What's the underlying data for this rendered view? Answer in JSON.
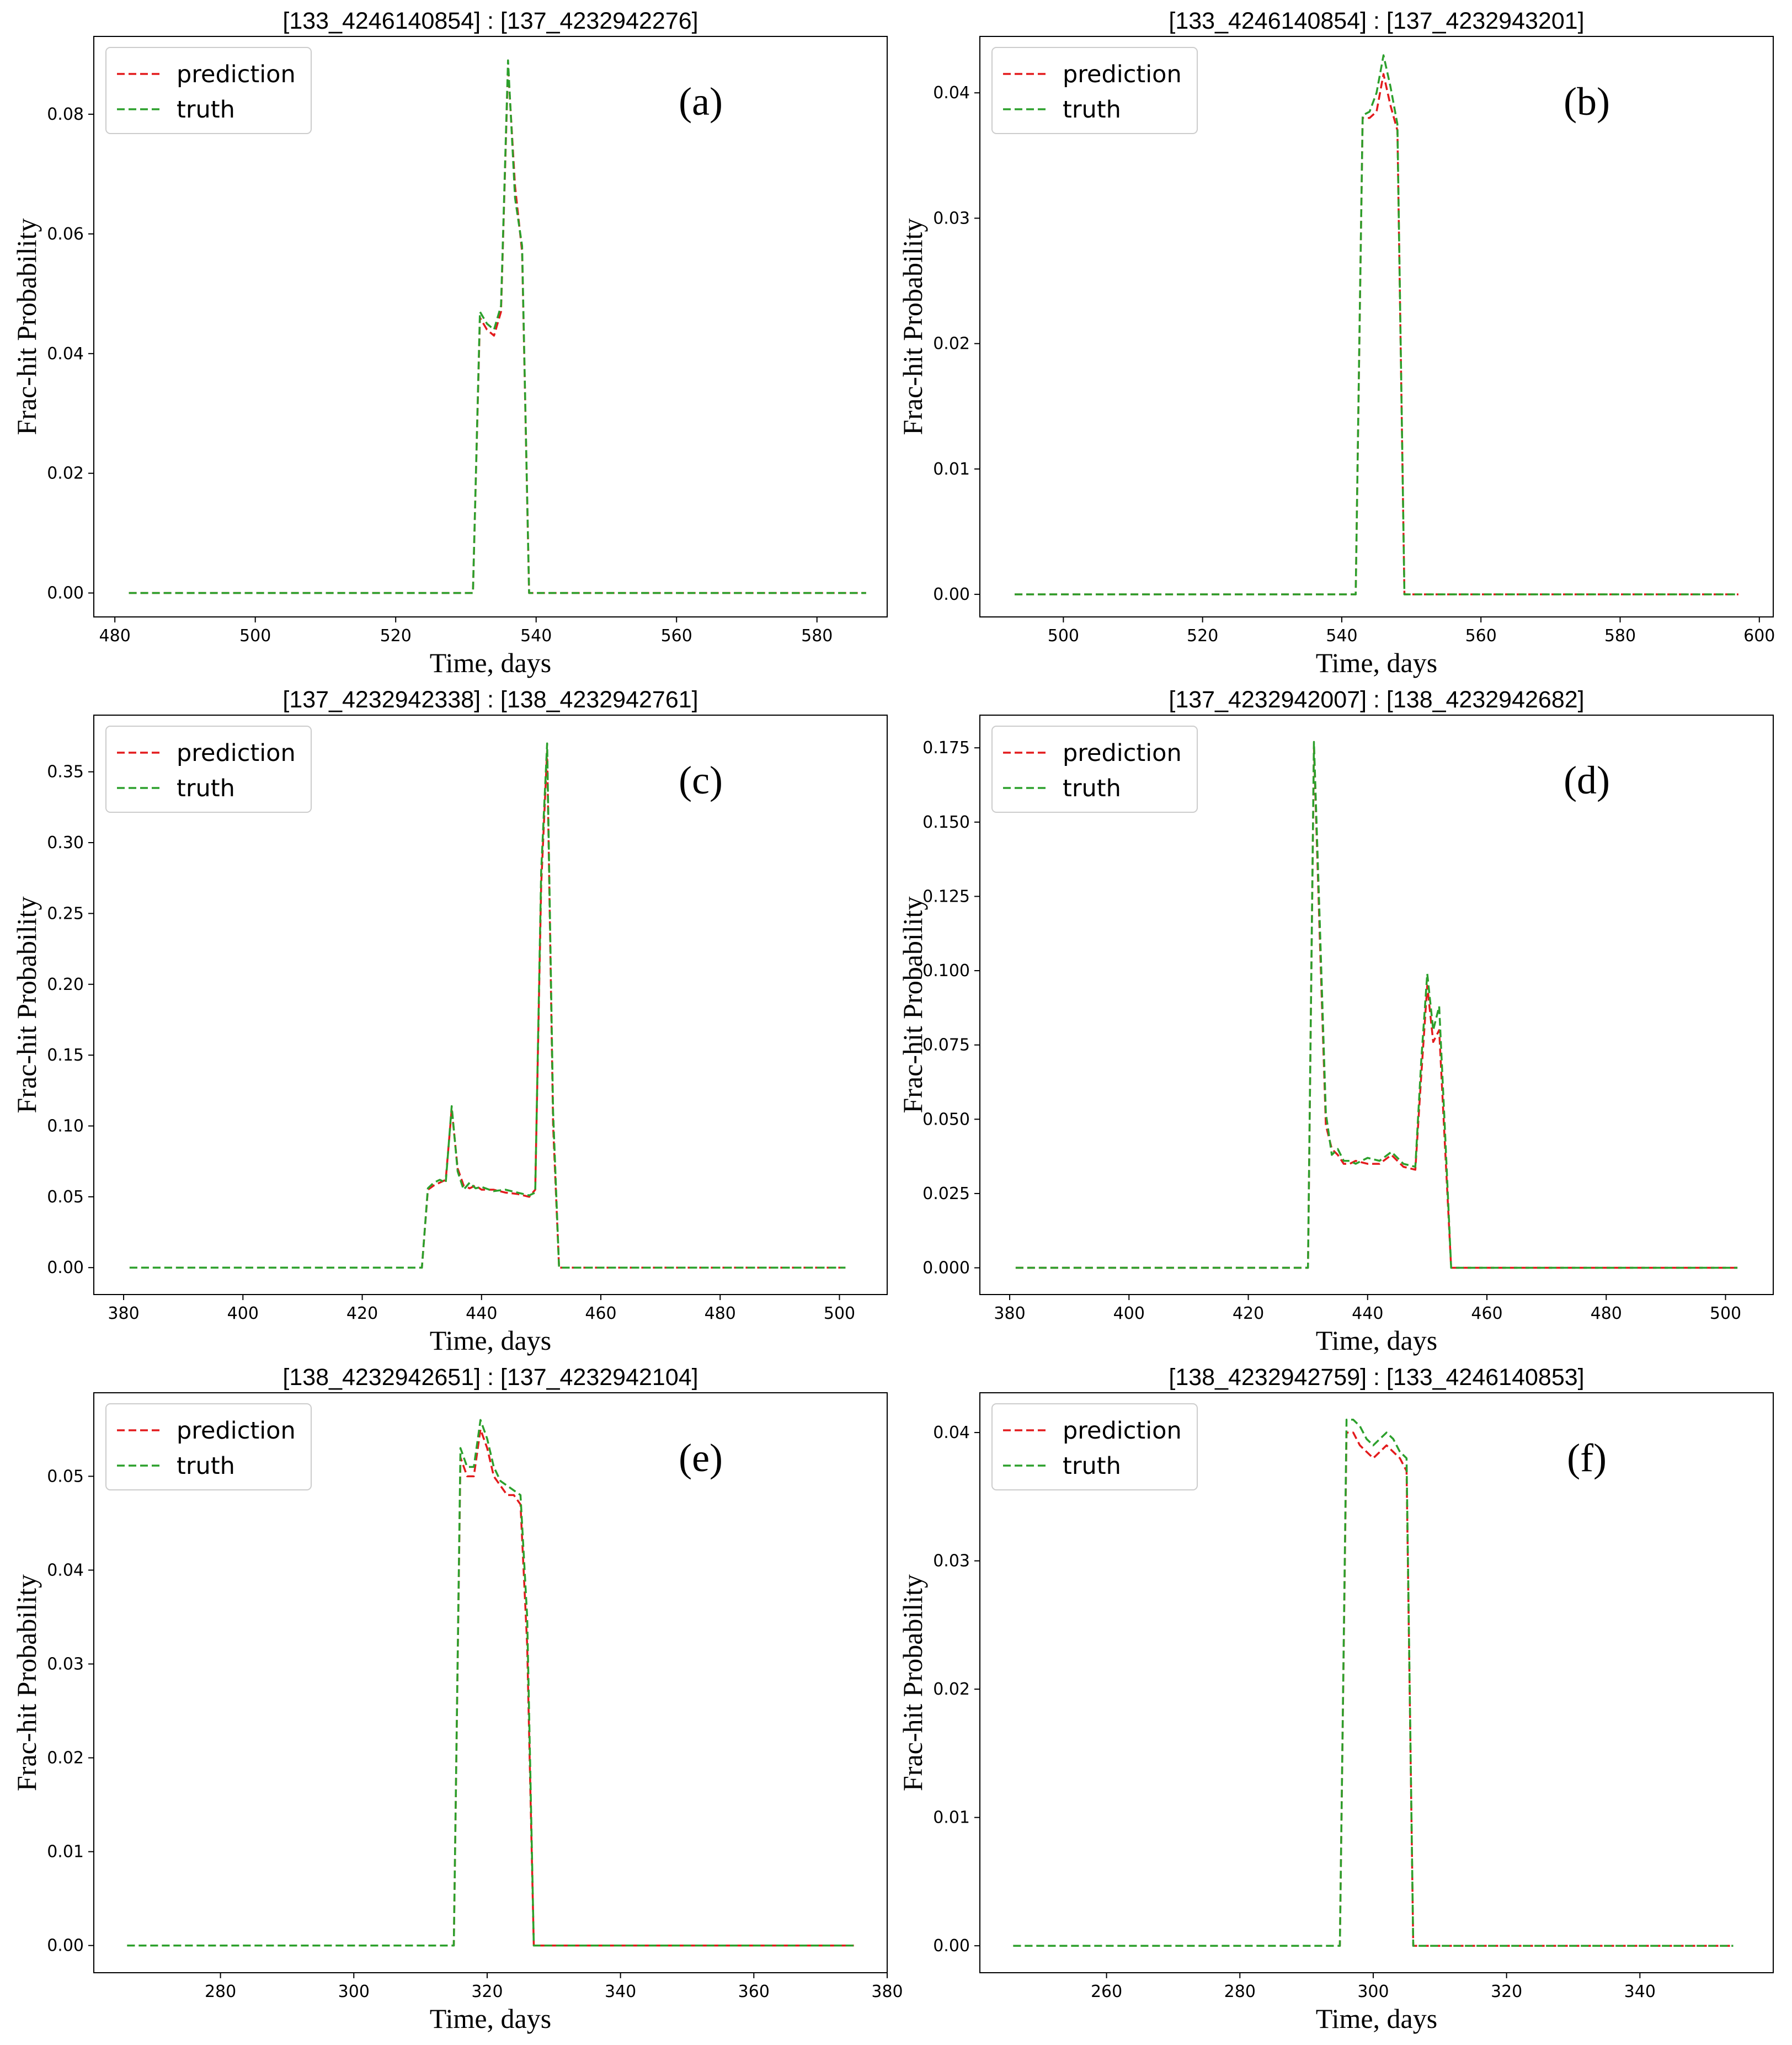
{
  "colors": {
    "prediction": "#e31a1c",
    "truth": "#2ca02c",
    "frame": "#000000",
    "background": "#ffffff"
  },
  "chart_data": [
    {
      "type": "line",
      "title": "[133_4246140854] : [137_4232942276]",
      "panel_label": "(a)",
      "xlabel": "Time, days",
      "ylabel": "Frac-hit Probability",
      "xlim": [
        477,
        590
      ],
      "ylim": [
        -0.004,
        0.093
      ],
      "xticks": [
        480,
        500,
        520,
        540,
        560,
        580
      ],
      "yticks": [
        0,
        0.02,
        0.04,
        0.06,
        0.08
      ],
      "ytick_labels": [
        "0.00",
        "0.02",
        "0.04",
        "0.06",
        "0.08"
      ],
      "legend": [
        "prediction",
        "truth"
      ],
      "legend_position": "top-left",
      "grid": false,
      "series": [
        {
          "name": "prediction",
          "x": [
            482,
            531,
            532,
            533,
            534,
            535,
            536,
            537,
            538,
            539,
            540,
            587
          ],
          "y": [
            0,
            0,
            0.046,
            0.044,
            0.043,
            0.047,
            0.088,
            0.068,
            0.057,
            0,
            0,
            0
          ]
        },
        {
          "name": "truth",
          "x": [
            482,
            531,
            532,
            533,
            534,
            535,
            536,
            537,
            538,
            539,
            540,
            587
          ],
          "y": [
            0,
            0,
            0.047,
            0.045,
            0.044,
            0.048,
            0.089,
            0.066,
            0.058,
            0,
            0,
            0
          ]
        }
      ]
    },
    {
      "type": "line",
      "title": "[133_4246140854] : [137_4232943201]",
      "panel_label": "(b)",
      "xlabel": "Time, days",
      "ylabel": "Frac-hit Probability",
      "xlim": [
        488,
        602
      ],
      "ylim": [
        -0.0018,
        0.0445
      ],
      "xticks": [
        500,
        520,
        540,
        560,
        580,
        600
      ],
      "yticks": [
        0,
        0.01,
        0.02,
        0.03,
        0.04
      ],
      "ytick_labels": [
        "0.00",
        "0.01",
        "0.02",
        "0.03",
        "0.04"
      ],
      "legend": [
        "prediction",
        "truth"
      ],
      "legend_position": "top-left",
      "grid": false,
      "series": [
        {
          "name": "prediction",
          "x": [
            493,
            542,
            543,
            544,
            545,
            546,
            547,
            548,
            549,
            550,
            597
          ],
          "y": [
            0,
            0,
            0.038,
            0.038,
            0.0385,
            0.0415,
            0.039,
            0.037,
            0,
            0,
            0
          ]
        },
        {
          "name": "truth",
          "x": [
            493,
            542,
            543,
            544,
            545,
            546,
            547,
            548,
            549,
            550,
            597
          ],
          "y": [
            0,
            0,
            0.0382,
            0.0385,
            0.04,
            0.043,
            0.0405,
            0.0375,
            0,
            0,
            0
          ]
        }
      ]
    },
    {
      "type": "line",
      "title": "[137_4232942338] : [138_4232942761]",
      "panel_label": "(c)",
      "xlabel": "Time, days",
      "ylabel": "Frac-hit Probability",
      "xlim": [
        375,
        508
      ],
      "ylim": [
        -0.019,
        0.39
      ],
      "xticks": [
        380,
        400,
        420,
        440,
        460,
        480,
        500
      ],
      "yticks": [
        0,
        0.05,
        0.1,
        0.15,
        0.2,
        0.25,
        0.3,
        0.35
      ],
      "ytick_labels": [
        "0.00",
        "0.05",
        "0.10",
        "0.15",
        "0.20",
        "0.25",
        "0.30",
        "0.35"
      ],
      "legend": [
        "prediction",
        "truth"
      ],
      "legend_position": "top-left",
      "grid": false,
      "series": [
        {
          "name": "prediction",
          "x": [
            381,
            430,
            431,
            432,
            433,
            434,
            435,
            436,
            437,
            438,
            439,
            440,
            442,
            444,
            446,
            448,
            449,
            450,
            451,
            452,
            453,
            501
          ],
          "y": [
            0,
            0,
            0.055,
            0.058,
            0.06,
            0.062,
            0.112,
            0.07,
            0.058,
            0.056,
            0.058,
            0.055,
            0.055,
            0.053,
            0.052,
            0.05,
            0.055,
            0.27,
            0.365,
            0.1,
            0,
            0
          ]
        },
        {
          "name": "truth",
          "x": [
            381,
            430,
            431,
            432,
            433,
            434,
            435,
            436,
            437,
            438,
            439,
            440,
            442,
            444,
            446,
            448,
            449,
            450,
            451,
            452,
            453,
            501
          ],
          "y": [
            0,
            0,
            0.056,
            0.06,
            0.062,
            0.06,
            0.114,
            0.068,
            0.055,
            0.06,
            0.056,
            0.057,
            0.054,
            0.055,
            0.053,
            0.051,
            0.053,
            0.28,
            0.37,
            0.11,
            0,
            0
          ]
        }
      ]
    },
    {
      "type": "line",
      "title": "[137_4232942007] : [138_4232942682]",
      "panel_label": "(d)",
      "xlabel": "Time, days",
      "ylabel": "Frac-hit Probability",
      "xlim": [
        375,
        508
      ],
      "ylim": [
        -0.009,
        0.186
      ],
      "xticks": [
        380,
        400,
        420,
        440,
        460,
        480,
        500
      ],
      "yticks": [
        0,
        0.025,
        0.05,
        0.075,
        0.1,
        0.125,
        0.15,
        0.175
      ],
      "ytick_labels": [
        "0.000",
        "0.025",
        "0.050",
        "0.075",
        "0.100",
        "0.125",
        "0.150",
        "0.175"
      ],
      "legend": [
        "prediction",
        "truth"
      ],
      "legend_position": "top-left",
      "grid": false,
      "series": [
        {
          "name": "prediction",
          "x": [
            381,
            430,
            431,
            432,
            433,
            434,
            435,
            436,
            437,
            438,
            440,
            442,
            444,
            446,
            448,
            449,
            450,
            451,
            452,
            453,
            454,
            502
          ],
          "y": [
            0,
            0,
            0.175,
            0.11,
            0.048,
            0.04,
            0.038,
            0.035,
            0.035,
            0.036,
            0.035,
            0.035,
            0.038,
            0.034,
            0.033,
            0.065,
            0.095,
            0.076,
            0.08,
            0.04,
            0,
            0
          ]
        },
        {
          "name": "truth",
          "x": [
            381,
            430,
            431,
            432,
            433,
            434,
            435,
            436,
            437,
            438,
            440,
            442,
            444,
            446,
            448,
            449,
            450,
            451,
            452,
            453,
            454,
            502
          ],
          "y": [
            0,
            0,
            0.177,
            0.115,
            0.052,
            0.038,
            0.04,
            0.036,
            0.036,
            0.035,
            0.037,
            0.036,
            0.039,
            0.035,
            0.034,
            0.07,
            0.099,
            0.08,
            0.088,
            0.045,
            0,
            0
          ]
        }
      ]
    },
    {
      "type": "line",
      "title": "[138_4232942651] : [137_4232942104]",
      "panel_label": "(e)",
      "xlabel": "Time, days",
      "ylabel": "Frac-hit Probability",
      "xlim": [
        261,
        380
      ],
      "ylim": [
        -0.0029,
        0.0589
      ],
      "xticks": [
        280,
        300,
        320,
        340,
        360,
        380
      ],
      "yticks": [
        0,
        0.01,
        0.02,
        0.03,
        0.04,
        0.05
      ],
      "ytick_labels": [
        "0.00",
        "0.01",
        "0.02",
        "0.03",
        "0.04",
        "0.05"
      ],
      "legend": [
        "prediction",
        "truth"
      ],
      "legend_position": "top-left",
      "grid": false,
      "series": [
        {
          "name": "prediction",
          "x": [
            266,
            315,
            316,
            317,
            318,
            319,
            320,
            321,
            322,
            323,
            324,
            325,
            326,
            327,
            328,
            375
          ],
          "y": [
            0,
            0,
            0.052,
            0.05,
            0.05,
            0.055,
            0.053,
            0.05,
            0.049,
            0.048,
            0.048,
            0.047,
            0.032,
            0,
            0,
            0
          ]
        },
        {
          "name": "truth",
          "x": [
            266,
            315,
            316,
            317,
            318,
            319,
            320,
            321,
            322,
            323,
            324,
            325,
            326,
            327,
            328,
            375
          ],
          "y": [
            0,
            0,
            0.053,
            0.051,
            0.051,
            0.056,
            0.054,
            0.051,
            0.0495,
            0.049,
            0.0485,
            0.048,
            0.035,
            0,
            0,
            0
          ]
        }
      ]
    },
    {
      "type": "line",
      "title": "[138_4232942759] : [133_4246140853]",
      "panel_label": "(f)",
      "xlabel": "Time, days",
      "ylabel": "Frac-hit Probability",
      "xlim": [
        241,
        360
      ],
      "ylim": [
        -0.0021,
        0.0431
      ],
      "xticks": [
        260,
        280,
        300,
        320,
        340
      ],
      "yticks": [
        0,
        0.01,
        0.02,
        0.03,
        0.04
      ],
      "ytick_labels": [
        "0.00",
        "0.01",
        "0.02",
        "0.03",
        "0.04"
      ],
      "legend": [
        "prediction",
        "truth"
      ],
      "legend_position": "top-left",
      "grid": false,
      "series": [
        {
          "name": "prediction",
          "x": [
            246,
            295,
            296,
            297,
            298,
            299,
            300,
            301,
            302,
            303,
            304,
            305,
            306,
            307,
            354
          ],
          "y": [
            0,
            0,
            0.04,
            0.04,
            0.039,
            0.0385,
            0.038,
            0.0385,
            0.039,
            0.0385,
            0.038,
            0.037,
            0,
            0,
            0
          ]
        },
        {
          "name": "truth",
          "x": [
            246,
            295,
            296,
            297,
            298,
            299,
            300,
            301,
            302,
            303,
            304,
            305,
            306,
            307,
            354
          ],
          "y": [
            0,
            0,
            0.041,
            0.041,
            0.0405,
            0.0395,
            0.039,
            0.0395,
            0.04,
            0.0395,
            0.0385,
            0.038,
            0,
            0,
            0
          ]
        }
      ]
    }
  ]
}
